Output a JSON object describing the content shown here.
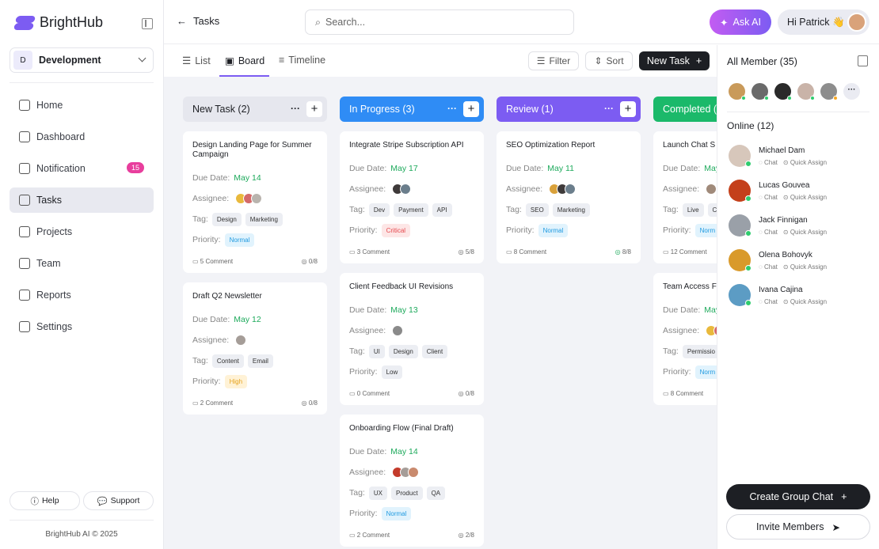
{
  "app": {
    "name": "BrightHub"
  },
  "sidebar": {
    "workspace": {
      "initial": "D",
      "name": "Development"
    },
    "items": [
      {
        "label": "Home",
        "icon": "home-icon"
      },
      {
        "label": "Dashboard",
        "icon": "chart-line-icon"
      },
      {
        "label": "Notification",
        "icon": "bell-icon",
        "badge": "15"
      },
      {
        "label": "Tasks",
        "icon": "tasks-icon",
        "active": true
      },
      {
        "label": "Projects",
        "icon": "folder-icon"
      },
      {
        "label": "Team",
        "icon": "users-icon"
      },
      {
        "label": "Reports",
        "icon": "file-icon"
      },
      {
        "label": "Settings",
        "icon": "gear-icon"
      }
    ],
    "help": "Help",
    "support": "Support",
    "copyright": "BrightHub AI © 2025"
  },
  "header": {
    "title": "Tasks",
    "search_placeholder": "Search...",
    "ask_ai": "Ask AI",
    "greeting": "Hi Patrick 👋"
  },
  "toolbar": {
    "views": [
      "List",
      "Board",
      "Timeline"
    ],
    "active_view": "Board",
    "filter": "Filter",
    "sort": "Sort",
    "new_task": "New Task"
  },
  "colors": {
    "accent": "#7c5cf2",
    "in_progress": "#2f8cf5",
    "review": "#7c5cf2",
    "completed": "#1bb96a",
    "due": "#1eaa5c"
  },
  "board": {
    "columns": [
      {
        "title": "New Task (2)",
        "color": "#e6e7ee",
        "text": "#1d1f24",
        "cards": [
          {
            "title": "Design Landing Page for Summer Campaign",
            "due_label": "Due Date:",
            "due": "May 14",
            "assignees": [
              "#e9b93c",
              "#d46a6a",
              "#b9b4ae"
            ],
            "tags": [
              "Design",
              "Marketing"
            ],
            "priority": "Normal",
            "comments": "5 Comment",
            "checks": "0/8"
          },
          {
            "title": "Draft Q2 Newsletter",
            "due_label": "Due Date:",
            "due": "May 12",
            "assignees": [
              "#a59d98"
            ],
            "tags": [
              "Content",
              "Email"
            ],
            "priority": "High",
            "comments": "2 Comment",
            "checks": "0/8"
          }
        ]
      },
      {
        "title": "In Progress (3)",
        "color": "#2f8cf5",
        "text": "#fff",
        "cards": [
          {
            "title": "Integrate Stripe Subscription API",
            "due_label": "Due Date:",
            "due": "May 17",
            "assignees": [
              "#3e3a3a",
              "#6b7e8c"
            ],
            "tags": [
              "Dev",
              "Payment",
              "API"
            ],
            "priority": "Critical",
            "comments": "3 Comment",
            "checks": "5/8"
          },
          {
            "title": "Client Feedback UI Revisions",
            "due_label": "Due Date:",
            "due": "May 13",
            "assignees": [
              "#8a8a8a"
            ],
            "tags": [
              "UI",
              "Design",
              "Client"
            ],
            "priority": "Low",
            "comments": "0 Comment",
            "checks": "0/8"
          },
          {
            "title": "Onboarding Flow (Final Draft)",
            "due_label": "Due Date:",
            "due": "May 14",
            "assignees": [
              "#c43b2b",
              "#a59d98",
              "#c98a6e"
            ],
            "tags": [
              "UX",
              "Product",
              "QA"
            ],
            "priority": "Normal",
            "comments": "2 Comment",
            "checks": "2/8"
          }
        ]
      },
      {
        "title": "Review (1)",
        "color": "#7c5cf2",
        "text": "#fff",
        "cards": [
          {
            "title": "SEO Optimization Report",
            "due_label": "Due Date:",
            "due": "May 11",
            "assignees": [
              "#d9a13a",
              "#3e3a3a",
              "#6b7e8c"
            ],
            "tags": [
              "SEO",
              "Marketing"
            ],
            "priority": "Normal",
            "comments": "8 Comment",
            "checks": "8/8",
            "done": true
          }
        ]
      },
      {
        "title": "Completed (",
        "color": "#1bb96a",
        "text": "#fff",
        "cards": [
          {
            "title": "Launch Chat S",
            "due_label": "Due Date:",
            "due": "May",
            "assignees": [
              "#a08a7a"
            ],
            "tags": [
              "Live",
              "C"
            ],
            "priority": "Norm",
            "comments": "12 Comment",
            "checks": ""
          },
          {
            "title": "Team Access F",
            "due_label": "Due Date:",
            "due": "May",
            "assignees": [
              "#e9b93c",
              "#d46a6a"
            ],
            "tags": [
              "Permissio"
            ],
            "priority": "Norm",
            "comments": "8 Comment",
            "checks": ""
          }
        ]
      }
    ]
  },
  "labels": {
    "assignee": "Assignee:",
    "tag": "Tag:",
    "priority": "Priority:"
  },
  "priority_styles": {
    "Normal": [
      "#e1f3fd",
      "#1f9ae0"
    ],
    "Norm": [
      "#e1f3fd",
      "#1f9ae0"
    ],
    "High": [
      "#fff2d6",
      "#e6a21b"
    ],
    "Critical": [
      "#fde6e6",
      "#e5484d"
    ],
    "Low": [
      "#eceef3",
      "#333"
    ]
  },
  "panel": {
    "all_members": "All Member (35)",
    "member_avatars": [
      {
        "c": "#c99a5a",
        "s": "#2fcc6e"
      },
      {
        "c": "#6a6a6a",
        "s": "#2fcc6e"
      },
      {
        "c": "#2a2a2a",
        "s": "#2fcc6e"
      },
      {
        "c": "#c9b3a8",
        "s": "#2fcc6e"
      },
      {
        "c": "#8d8d8d",
        "s": "#f5a623"
      }
    ],
    "more": "···",
    "online_title": "Online (12)",
    "online": [
      {
        "name": "Michael Dam",
        "color": "#d7c7bb"
      },
      {
        "name": "Lucas Gouvea",
        "color": "#c4401b"
      },
      {
        "name": "Jack Finnigan",
        "color": "#9aa0a8"
      },
      {
        "name": "Olena Bohovyk",
        "color": "#d99a2b"
      },
      {
        "name": "Ivana Cajina",
        "color": "#5c9cc4"
      }
    ],
    "chat": "Chat",
    "quick_assign": "Quick Assign",
    "create_group": "Create Group Chat",
    "invite": "Invite Members"
  }
}
